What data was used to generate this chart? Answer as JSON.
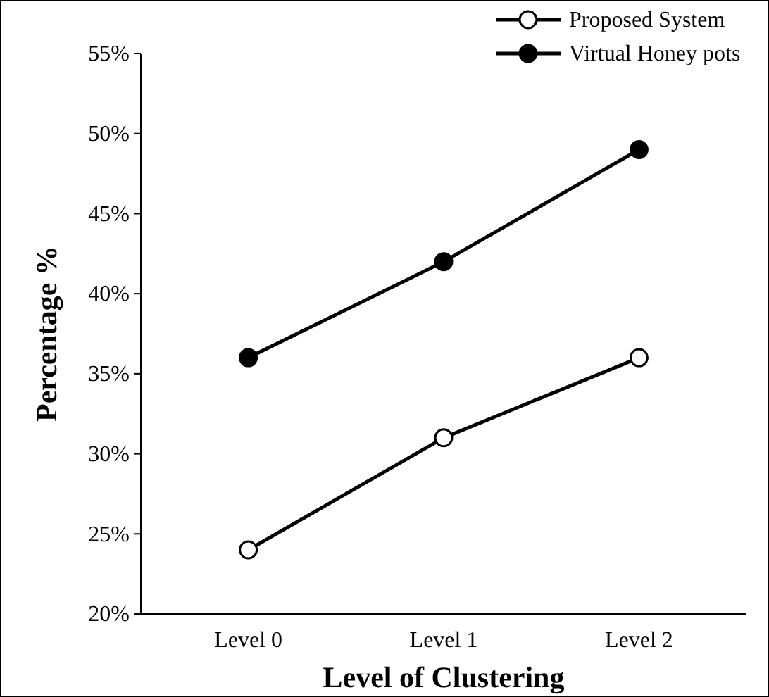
{
  "chart_data": {
    "type": "line",
    "xlabel": "Level of Clustering",
    "ylabel": "Percentage %",
    "categories": [
      "Level 0",
      "Level 1",
      "Level 2"
    ],
    "series": [
      {
        "name": "Proposed System",
        "color": "#000000",
        "values": [
          24,
          31,
          36
        ]
      },
      {
        "name": "Virtual Honey pots",
        "color": "#000000",
        "values": [
          36,
          42,
          49
        ]
      }
    ],
    "ylim": [
      20,
      55
    ],
    "yticks": [
      {
        "value": 20,
        "label": "20%"
      },
      {
        "value": 25,
        "label": "25%"
      },
      {
        "value": 30,
        "label": "30%"
      },
      {
        "value": 35,
        "label": "35%"
      },
      {
        "value": 40,
        "label": "40%"
      },
      {
        "value": 45,
        "label": "45%"
      },
      {
        "value": 50,
        "label": "50%"
      },
      {
        "value": 55,
        "label": "55%"
      }
    ],
    "marker": "circle",
    "line_style": "solid",
    "legend": "top right",
    "grid": false
  }
}
